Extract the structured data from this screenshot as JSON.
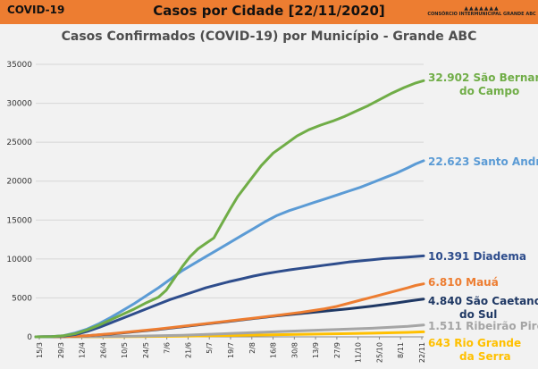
{
  "header": {
    "left_title": "COVID-19",
    "center_title": "Casos por Cidade [22/11/2020]",
    "logo_text": "Consórcio Intermunicipal Grande ABC"
  },
  "chart_data": {
    "type": "line",
    "title": "Casos Confirmados (COVID-19) por Município - Grande ABC",
    "xlabel": "",
    "ylabel": "",
    "ylim": [
      0,
      35000
    ],
    "yticks": [
      "0",
      "5000",
      "10000",
      "15000",
      "20000",
      "25000",
      "30000",
      "35000"
    ],
    "grid": true,
    "x_tick_labels": [
      "15/3",
      "29/3",
      "12/4",
      "26/4",
      "10/5",
      "24/5",
      "7/6",
      "21/6",
      "5/7",
      "19/7",
      "2/8",
      "16/8",
      "30/8",
      "13/9",
      "27/9",
      "11/10",
      "25/10",
      "8/11",
      "22/11"
    ],
    "series": [
      {
        "name": "São Bernardo do Campo",
        "label_value": "32.902",
        "label_lines": [
          "São Bernardo",
          "do Campo"
        ],
        "color": "#70ad47",
        "points": [
          [
            0,
            0
          ],
          [
            4,
            30
          ],
          [
            7,
            150
          ],
          [
            10,
            400
          ],
          [
            13,
            900
          ],
          [
            16,
            1500
          ],
          [
            19,
            2200
          ],
          [
            22,
            2900
          ],
          [
            25,
            3600
          ],
          [
            28,
            4400
          ],
          [
            31,
            5100
          ],
          [
            33,
            6000
          ],
          [
            35,
            7500
          ],
          [
            37,
            9000
          ],
          [
            39,
            10300
          ],
          [
            41,
            11300
          ],
          [
            43,
            12000
          ],
          [
            45,
            12700
          ],
          [
            47,
            14500
          ],
          [
            49,
            16300
          ],
          [
            51,
            18000
          ],
          [
            54,
            20000
          ],
          [
            57,
            22000
          ],
          [
            60,
            23600
          ],
          [
            63,
            24700
          ],
          [
            66,
            25800
          ],
          [
            69,
            26600
          ],
          [
            72,
            27200
          ],
          [
            75,
            27700
          ],
          [
            78,
            28300
          ],
          [
            81,
            29000
          ],
          [
            84,
            29700
          ],
          [
            87,
            30500
          ],
          [
            90,
            31300
          ],
          [
            93,
            32000
          ],
          [
            96,
            32600
          ],
          [
            98,
            32902
          ]
        ]
      },
      {
        "name": "Santo André",
        "label_value": "22.623",
        "label_lines": [
          "Santo André"
        ],
        "color": "#5b9bd5",
        "points": [
          [
            0,
            0
          ],
          [
            4,
            30
          ],
          [
            7,
            150
          ],
          [
            10,
            500
          ],
          [
            13,
            1000
          ],
          [
            16,
            1700
          ],
          [
            19,
            2500
          ],
          [
            22,
            3400
          ],
          [
            25,
            4300
          ],
          [
            28,
            5300
          ],
          [
            31,
            6300
          ],
          [
            34,
            7400
          ],
          [
            37,
            8500
          ],
          [
            40,
            9400
          ],
          [
            43,
            10300
          ],
          [
            46,
            11200
          ],
          [
            49,
            12100
          ],
          [
            52,
            13000
          ],
          [
            55,
            13900
          ],
          [
            58,
            14800
          ],
          [
            61,
            15600
          ],
          [
            64,
            16200
          ],
          [
            67,
            16700
          ],
          [
            70,
            17200
          ],
          [
            73,
            17700
          ],
          [
            76,
            18200
          ],
          [
            79,
            18700
          ],
          [
            82,
            19200
          ],
          [
            85,
            19800
          ],
          [
            88,
            20400
          ],
          [
            91,
            21000
          ],
          [
            94,
            21700
          ],
          [
            96,
            22200
          ],
          [
            98,
            22623
          ]
        ]
      },
      {
        "name": "Diadema",
        "label_value": "10.391",
        "label_lines": [
          "Diadema"
        ],
        "color": "#2e4d8c",
        "points": [
          [
            0,
            0
          ],
          [
            4,
            20
          ],
          [
            7,
            100
          ],
          [
            10,
            300
          ],
          [
            13,
            700
          ],
          [
            16,
            1200
          ],
          [
            19,
            1800
          ],
          [
            22,
            2400
          ],
          [
            25,
            3000
          ],
          [
            28,
            3600
          ],
          [
            31,
            4200
          ],
          [
            34,
            4800
          ],
          [
            37,
            5300
          ],
          [
            40,
            5800
          ],
          [
            43,
            6300
          ],
          [
            46,
            6700
          ],
          [
            49,
            7100
          ],
          [
            52,
            7450
          ],
          [
            55,
            7800
          ],
          [
            58,
            8100
          ],
          [
            61,
            8350
          ],
          [
            64,
            8600
          ],
          [
            67,
            8800
          ],
          [
            70,
            9000
          ],
          [
            73,
            9200
          ],
          [
            76,
            9400
          ],
          [
            79,
            9600
          ],
          [
            82,
            9750
          ],
          [
            85,
            9900
          ],
          [
            88,
            10050
          ],
          [
            91,
            10150
          ],
          [
            94,
            10250
          ],
          [
            98,
            10391
          ]
        ]
      },
      {
        "name": "Mauá",
        "label_value": "6.810",
        "label_lines": [
          "Mauá"
        ],
        "color": "#ed7d31",
        "points": [
          [
            0,
            0
          ],
          [
            7,
            30
          ],
          [
            13,
            150
          ],
          [
            19,
            400
          ],
          [
            25,
            700
          ],
          [
            31,
            1000
          ],
          [
            37,
            1350
          ],
          [
            43,
            1700
          ],
          [
            49,
            2050
          ],
          [
            55,
            2400
          ],
          [
            61,
            2750
          ],
          [
            67,
            3150
          ],
          [
            73,
            3600
          ],
          [
            76,
            3900
          ],
          [
            79,
            4300
          ],
          [
            82,
            4700
          ],
          [
            85,
            5100
          ],
          [
            88,
            5500
          ],
          [
            91,
            5900
          ],
          [
            94,
            6300
          ],
          [
            96,
            6600
          ],
          [
            98,
            6810
          ]
        ]
      },
      {
        "name": "São Caetano do Sul",
        "label_value": "4.840",
        "label_lines": [
          "São Caetano",
          "do Sul"
        ],
        "color": "#1f3864",
        "points": [
          [
            0,
            0
          ],
          [
            7,
            30
          ],
          [
            13,
            150
          ],
          [
            19,
            350
          ],
          [
            25,
            650
          ],
          [
            31,
            950
          ],
          [
            37,
            1300
          ],
          [
            43,
            1650
          ],
          [
            49,
            2000
          ],
          [
            55,
            2350
          ],
          [
            61,
            2700
          ],
          [
            67,
            3000
          ],
          [
            73,
            3300
          ],
          [
            79,
            3600
          ],
          [
            85,
            3950
          ],
          [
            91,
            4350
          ],
          [
            95,
            4650
          ],
          [
            98,
            4840
          ]
        ]
      },
      {
        "name": "Ribeirão Pires",
        "label_value": "1.511",
        "label_lines": [
          "Ribeirão Pires"
        ],
        "color": "#a5a5a5",
        "points": [
          [
            0,
            0
          ],
          [
            13,
            20
          ],
          [
            25,
            80
          ],
          [
            37,
            200
          ],
          [
            49,
            420
          ],
          [
            61,
            650
          ],
          [
            73,
            880
          ],
          [
            85,
            1100
          ],
          [
            94,
            1350
          ],
          [
            98,
            1511
          ]
        ]
      },
      {
        "name": "Rio Grande da Serra",
        "label_value": "643",
        "label_lines": [
          "Rio Grande",
          "da Serra"
        ],
        "color": "#ffc000",
        "points": [
          [
            0,
            0
          ],
          [
            13,
            5
          ],
          [
            25,
            30
          ],
          [
            37,
            80
          ],
          [
            49,
            170
          ],
          [
            61,
            270
          ],
          [
            73,
            370
          ],
          [
            85,
            470
          ],
          [
            94,
            570
          ],
          [
            98,
            643
          ]
        ]
      }
    ]
  }
}
